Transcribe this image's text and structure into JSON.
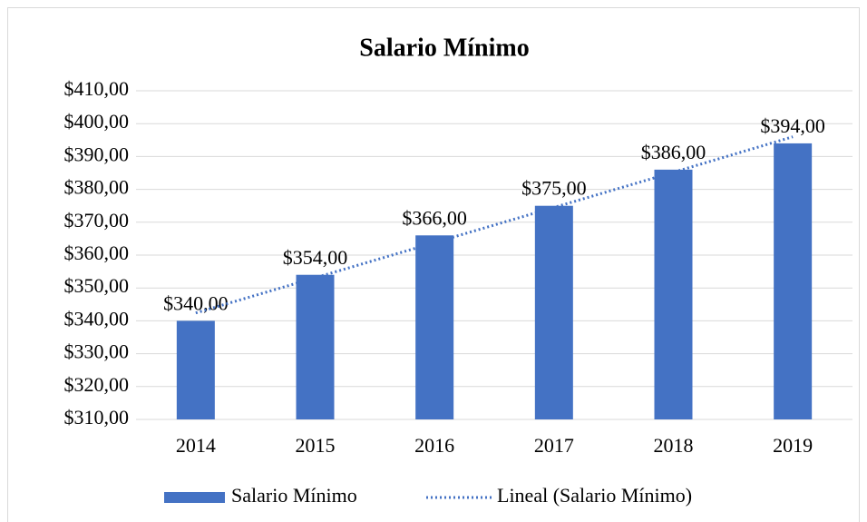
{
  "chart_data": {
    "type": "bar",
    "title": "Salario Mínimo",
    "categories": [
      "2014",
      "2015",
      "2016",
      "2017",
      "2018",
      "2019"
    ],
    "series": [
      {
        "name": "Salario Mínimo",
        "color": "#4472c4",
        "values": [
          340,
          354,
          366,
          375,
          386,
          394
        ],
        "value_labels": [
          "$340,00",
          "$354,00",
          "$366,00",
          "$375,00",
          "$386,00",
          "$394,00"
        ]
      }
    ],
    "trendline": {
      "name": "Lineal (Salario Mínimo)",
      "color": "#4472c4",
      "values": [
        342.4,
        353.1,
        363.8,
        374.5,
        385.2,
        396.0
      ]
    },
    "ylim": [
      310,
      410
    ],
    "yticks": [
      {
        "value": 310,
        "label": "$310,00"
      },
      {
        "value": 320,
        "label": "$320,00"
      },
      {
        "value": 330,
        "label": "$330,00"
      },
      {
        "value": 340,
        "label": "$340,00"
      },
      {
        "value": 350,
        "label": "$350,00"
      },
      {
        "value": 360,
        "label": "$360,00"
      },
      {
        "value": 370,
        "label": "$370,00"
      },
      {
        "value": 380,
        "label": "$380,00"
      },
      {
        "value": 390,
        "label": "$390,00"
      },
      {
        "value": 400,
        "label": "$400,00"
      },
      {
        "value": 410,
        "label": "$410,00"
      }
    ],
    "grid": true,
    "legend": "bottom"
  }
}
